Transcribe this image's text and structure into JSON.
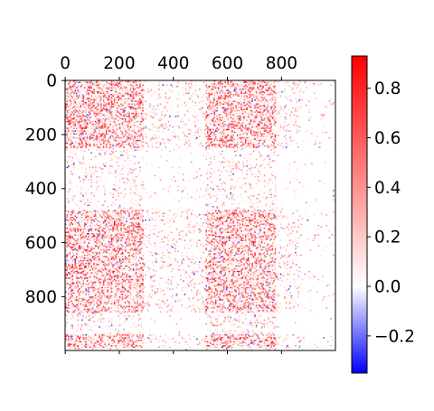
{
  "chart_data": {
    "type": "heatmap",
    "title": "",
    "xlabel": "",
    "ylabel": "",
    "matrix_size": 1000,
    "x_tick_position": "top",
    "x_ticks": [
      0,
      200,
      400,
      600,
      800
    ],
    "x_tick_labels": [
      "0",
      "200",
      "400",
      "600",
      "800"
    ],
    "y_ticks": [
      0,
      200,
      400,
      600,
      800
    ],
    "y_tick_labels": [
      "0",
      "200",
      "400",
      "600",
      "800"
    ],
    "xlim": [
      -0.5,
      999.5
    ],
    "ylim": [
      999.5,
      -0.5
    ],
    "colormap": "bwr",
    "colormap_colors": [
      "#0000ff",
      "#ffffff",
      "#ff0000"
    ],
    "value_range": [
      -0.35,
      0.93
    ],
    "colorbar": {
      "ticks": [
        -0.2,
        0.0,
        0.2,
        0.4,
        0.6,
        0.8
      ],
      "tick_labels": [
        "−0.2",
        "0.0",
        "0.2",
        "0.4",
        "0.6",
        "0.8"
      ]
    },
    "dense_column_bands": [
      [
        0,
        20
      ],
      [
        20,
        100
      ],
      [
        100,
        190
      ],
      [
        190,
        290
      ],
      [
        520,
        660
      ],
      [
        660,
        780
      ]
    ],
    "dense_row_bands": [
      [
        0,
        60
      ],
      [
        60,
        250
      ],
      [
        480,
        640
      ],
      [
        640,
        860
      ],
      [
        940,
        990
      ]
    ],
    "sparse_start": 870,
    "grid": false,
    "legend": "none"
  }
}
